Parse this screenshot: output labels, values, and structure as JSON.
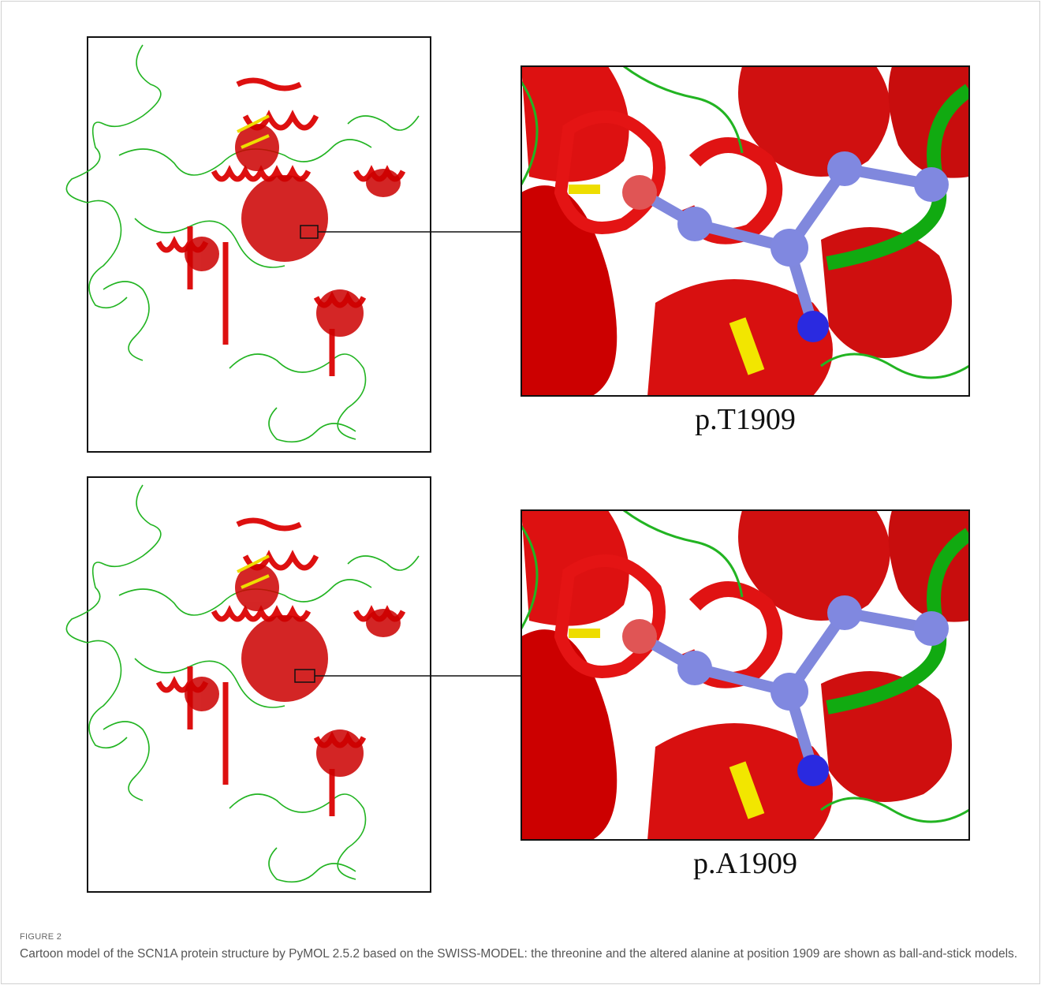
{
  "panels": [
    {
      "label": "p.T1909"
    },
    {
      "label": "p.A1909"
    }
  ],
  "caption": {
    "figure": "FIGURE 2",
    "text": "Cartoon model of the SCN1A protein structure by PyMOL 2.5.2 based on the SWISS-MODEL: the threonine and the altered alanine at position 1909 are shown as ball-and-stick models."
  }
}
